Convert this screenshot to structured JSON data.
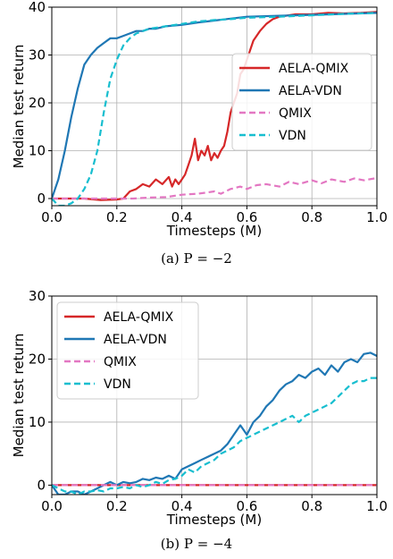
{
  "chart_data": [
    {
      "type": "line",
      "caption": "(a)  P = −2",
      "xlabel": "Timesteps (M)",
      "ylabel": "Median test return",
      "xlim": [
        0,
        1.0
      ],
      "ylim": [
        -1.5,
        40
      ],
      "xticks": [
        "0.0",
        "0.2",
        "0.4",
        "0.6",
        "0.8",
        "1.0"
      ],
      "yticks": [
        "0",
        "10",
        "20",
        "30",
        "40"
      ],
      "grid": true,
      "legend_position": "center-right",
      "series": [
        {
          "name": "AELA-QMIX",
          "color": "#d62728",
          "dash": "solid",
          "x": [
            0.0,
            0.05,
            0.1,
            0.15,
            0.2,
            0.22,
            0.24,
            0.26,
            0.28,
            0.3,
            0.32,
            0.34,
            0.36,
            0.37,
            0.38,
            0.39,
            0.4,
            0.41,
            0.42,
            0.43,
            0.44,
            0.45,
            0.46,
            0.47,
            0.48,
            0.49,
            0.5,
            0.51,
            0.52,
            0.53,
            0.54,
            0.55,
            0.56,
            0.57,
            0.58,
            0.59,
            0.6,
            0.62,
            0.64,
            0.66,
            0.68,
            0.7,
            0.75,
            0.8,
            0.85,
            0.9,
            0.95,
            1.0
          ],
          "y": [
            0.0,
            0.0,
            0.0,
            -0.3,
            -0.2,
            0.0,
            1.5,
            2.0,
            3.0,
            2.5,
            4.0,
            3.0,
            4.5,
            2.5,
            4.0,
            3.0,
            4.0,
            5.0,
            7.0,
            9.0,
            12.5,
            8.0,
            10.0,
            9.0,
            11.0,
            8.0,
            9.5,
            8.5,
            10.0,
            11.0,
            14.0,
            18.0,
            20.0,
            22.0,
            26.0,
            27.0,
            29.0,
            33.0,
            35.0,
            36.5,
            37.5,
            38.0,
            38.5,
            38.5,
            38.8,
            38.7,
            38.8,
            39.0
          ]
        },
        {
          "name": "AELA-VDN",
          "color": "#1f77b4",
          "dash": "solid",
          "x": [
            0.0,
            0.02,
            0.04,
            0.06,
            0.08,
            0.1,
            0.12,
            0.14,
            0.16,
            0.18,
            0.2,
            0.22,
            0.24,
            0.26,
            0.28,
            0.3,
            0.32,
            0.35,
            0.4,
            0.45,
            0.5,
            0.55,
            0.6,
            0.7,
            0.8,
            0.9,
            1.0
          ],
          "y": [
            0.0,
            4.0,
            10.0,
            17.0,
            23.0,
            28.0,
            30.0,
            31.5,
            32.5,
            33.5,
            33.5,
            34.0,
            34.5,
            35.0,
            35.0,
            35.5,
            35.5,
            36.0,
            36.3,
            36.8,
            37.2,
            37.6,
            38.0,
            38.2,
            38.4,
            38.6,
            38.8
          ]
        },
        {
          "name": "QMIX",
          "color": "#e377c2",
          "dash": "dashed",
          "x": [
            0.0,
            0.1,
            0.2,
            0.25,
            0.3,
            0.35,
            0.4,
            0.45,
            0.5,
            0.52,
            0.55,
            0.58,
            0.6,
            0.63,
            0.66,
            0.7,
            0.73,
            0.76,
            0.8,
            0.83,
            0.86,
            0.9,
            0.93,
            0.96,
            1.0
          ],
          "y": [
            0.0,
            0.0,
            0.0,
            0.0,
            0.2,
            0.3,
            0.8,
            1.0,
            1.5,
            1.0,
            2.0,
            2.5,
            2.0,
            2.8,
            3.0,
            2.5,
            3.5,
            3.0,
            3.8,
            3.2,
            4.0,
            3.5,
            4.2,
            3.8,
            4.3
          ]
        },
        {
          "name": "VDN",
          "color": "#17becf",
          "dash": "dashed",
          "x": [
            0.0,
            0.02,
            0.04,
            0.06,
            0.08,
            0.1,
            0.12,
            0.14,
            0.16,
            0.18,
            0.2,
            0.22,
            0.24,
            0.26,
            0.28,
            0.3,
            0.35,
            0.4,
            0.45,
            0.5,
            0.55,
            0.6,
            0.7,
            0.8,
            0.9,
            1.0
          ],
          "y": [
            0.0,
            -1.5,
            -1.5,
            -1.0,
            0.0,
            2.0,
            5.0,
            10.0,
            18.0,
            25.0,
            29.0,
            32.0,
            33.5,
            34.5,
            35.0,
            35.5,
            36.0,
            36.5,
            37.0,
            37.3,
            37.5,
            37.8,
            38.0,
            38.3,
            38.6,
            38.8
          ]
        }
      ]
    },
    {
      "type": "line",
      "caption": "(b)  P = −4",
      "xlabel": "Timesteps (M)",
      "ylabel": "Median test return",
      "xlim": [
        0,
        1.0
      ],
      "ylim": [
        -1.5,
        30
      ],
      "xticks": [
        "0.0",
        "0.2",
        "0.4",
        "0.6",
        "0.8",
        "1.0"
      ],
      "yticks": [
        "0",
        "10",
        "20",
        "30"
      ],
      "grid": true,
      "legend_position": "upper-left",
      "series": [
        {
          "name": "AELA-QMIX",
          "color": "#d62728",
          "dash": "solid",
          "x": [
            0.0,
            1.0
          ],
          "y": [
            0.0,
            0.0
          ]
        },
        {
          "name": "AELA-VDN",
          "color": "#1f77b4",
          "dash": "solid",
          "x": [
            0.0,
            0.02,
            0.04,
            0.06,
            0.08,
            0.1,
            0.12,
            0.14,
            0.16,
            0.18,
            0.2,
            0.22,
            0.24,
            0.26,
            0.28,
            0.3,
            0.32,
            0.34,
            0.36,
            0.38,
            0.4,
            0.42,
            0.44,
            0.46,
            0.48,
            0.5,
            0.52,
            0.54,
            0.56,
            0.58,
            0.6,
            0.62,
            0.64,
            0.66,
            0.68,
            0.7,
            0.72,
            0.74,
            0.76,
            0.78,
            0.8,
            0.82,
            0.84,
            0.86,
            0.88,
            0.9,
            0.92,
            0.94,
            0.96,
            0.98,
            1.0
          ],
          "y": [
            0.0,
            -1.5,
            -1.5,
            -1.0,
            -1.0,
            -1.5,
            -1.0,
            -0.5,
            0.0,
            0.5,
            0.0,
            0.5,
            0.3,
            0.5,
            1.0,
            0.8,
            1.2,
            1.0,
            1.5,
            1.0,
            2.5,
            3.0,
            3.5,
            4.0,
            4.5,
            5.0,
            5.5,
            6.5,
            8.0,
            9.5,
            8.0,
            10.0,
            11.0,
            12.5,
            13.5,
            15.0,
            16.0,
            16.5,
            17.5,
            17.0,
            18.0,
            18.5,
            17.5,
            19.0,
            18.0,
            19.5,
            20.0,
            19.5,
            20.8,
            21.0,
            20.5
          ]
        },
        {
          "name": "QMIX",
          "color": "#e377c2",
          "dash": "dashed",
          "x": [
            0.0,
            1.0
          ],
          "y": [
            0.0,
            0.0
          ]
        },
        {
          "name": "VDN",
          "color": "#17becf",
          "dash": "dashed",
          "x": [
            0.0,
            0.02,
            0.04,
            0.06,
            0.08,
            0.1,
            0.12,
            0.14,
            0.16,
            0.18,
            0.2,
            0.22,
            0.24,
            0.26,
            0.28,
            0.3,
            0.32,
            0.34,
            0.36,
            0.38,
            0.4,
            0.42,
            0.44,
            0.46,
            0.48,
            0.5,
            0.52,
            0.54,
            0.56,
            0.58,
            0.6,
            0.62,
            0.64,
            0.66,
            0.68,
            0.7,
            0.72,
            0.74,
            0.76,
            0.78,
            0.8,
            0.82,
            0.84,
            0.86,
            0.88,
            0.9,
            0.92,
            0.94,
            0.96,
            0.98,
            1.0
          ],
          "y": [
            0.0,
            -0.5,
            -1.0,
            -1.0,
            -1.5,
            -1.0,
            -1.0,
            -0.8,
            -1.0,
            -0.5,
            -0.5,
            -0.3,
            -0.5,
            0.0,
            -0.3,
            0.0,
            0.5,
            0.2,
            0.8,
            1.0,
            1.5,
            2.5,
            2.0,
            3.0,
            3.5,
            4.0,
            5.0,
            5.5,
            6.0,
            7.0,
            7.5,
            8.0,
            8.5,
            9.0,
            9.5,
            10.0,
            10.5,
            11.0,
            10.0,
            11.0,
            11.5,
            12.0,
            12.5,
            13.0,
            14.0,
            15.0,
            16.0,
            16.5,
            16.5,
            17.0,
            17.0
          ]
        }
      ]
    }
  ]
}
